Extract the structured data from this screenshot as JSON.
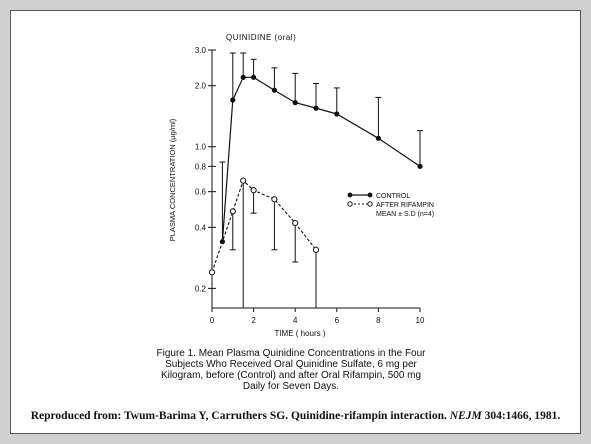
{
  "chart_data": {
    "type": "line",
    "title": "QUINIDINE (oral)",
    "xlabel": "TIME ( hours )",
    "ylabel": "PLASMA CONCENTRATION (µg/ml)",
    "xlim": [
      0,
      10
    ],
    "ylim": [
      0.16,
      3.0
    ],
    "yscale": "log",
    "x_ticks": [
      0,
      2,
      4,
      6,
      8,
      10
    ],
    "y_ticks": [
      0.2,
      0.4,
      0.6,
      0.8,
      1.0,
      2.0,
      3.0
    ],
    "y_tick_labels": [
      "0.2",
      "0.4",
      "0.6",
      "0.8",
      "1.0",
      "2.0",
      "3.0"
    ],
    "legend_position": "right",
    "legend_note": "MEAN ± S.D (n=4)",
    "series": [
      {
        "name": "CONTROL",
        "marker": "filled-circle",
        "line": "solid",
        "x": [
          0.5,
          1,
          1.5,
          2,
          3,
          4,
          5,
          6,
          8,
          10
        ],
        "y": [
          0.34,
          1.7,
          2.2,
          2.2,
          1.9,
          1.65,
          1.55,
          1.45,
          1.1,
          0.8
        ],
        "sd_upper": [
          0.84,
          2.9,
          2.9,
          2.7,
          2.45,
          2.3,
          2.05,
          1.95,
          1.75,
          1.2
        ]
      },
      {
        "name": "AFTER RIFAMPIN",
        "marker": "open-circle",
        "line": "dashed",
        "x": [
          0,
          1,
          1.5,
          2,
          3,
          4,
          5
        ],
        "y": [
          0.24,
          0.48,
          0.68,
          0.61,
          0.55,
          0.42,
          0.31
        ],
        "sd_upper": null,
        "sd_lower": [
          null,
          0.31,
          null,
          0.47,
          0.31,
          0.27,
          null
        ]
      }
    ]
  },
  "caption": "Figure 1. Mean Plasma Quinidine Concentrations in the Four Subjects Who Received Oral Quinidine Sulfate, 6 mg per Kilogram, before (Control) and after Oral Rifampin, 500 mg Daily for Seven Days.",
  "citation": {
    "prefix": "Reproduced from: Twum-Barima Y, Carruthers SG. Quinidine-rifampin interaction. ",
    "journal": "NEJM",
    "suffix": " 304:1466, 1981."
  }
}
